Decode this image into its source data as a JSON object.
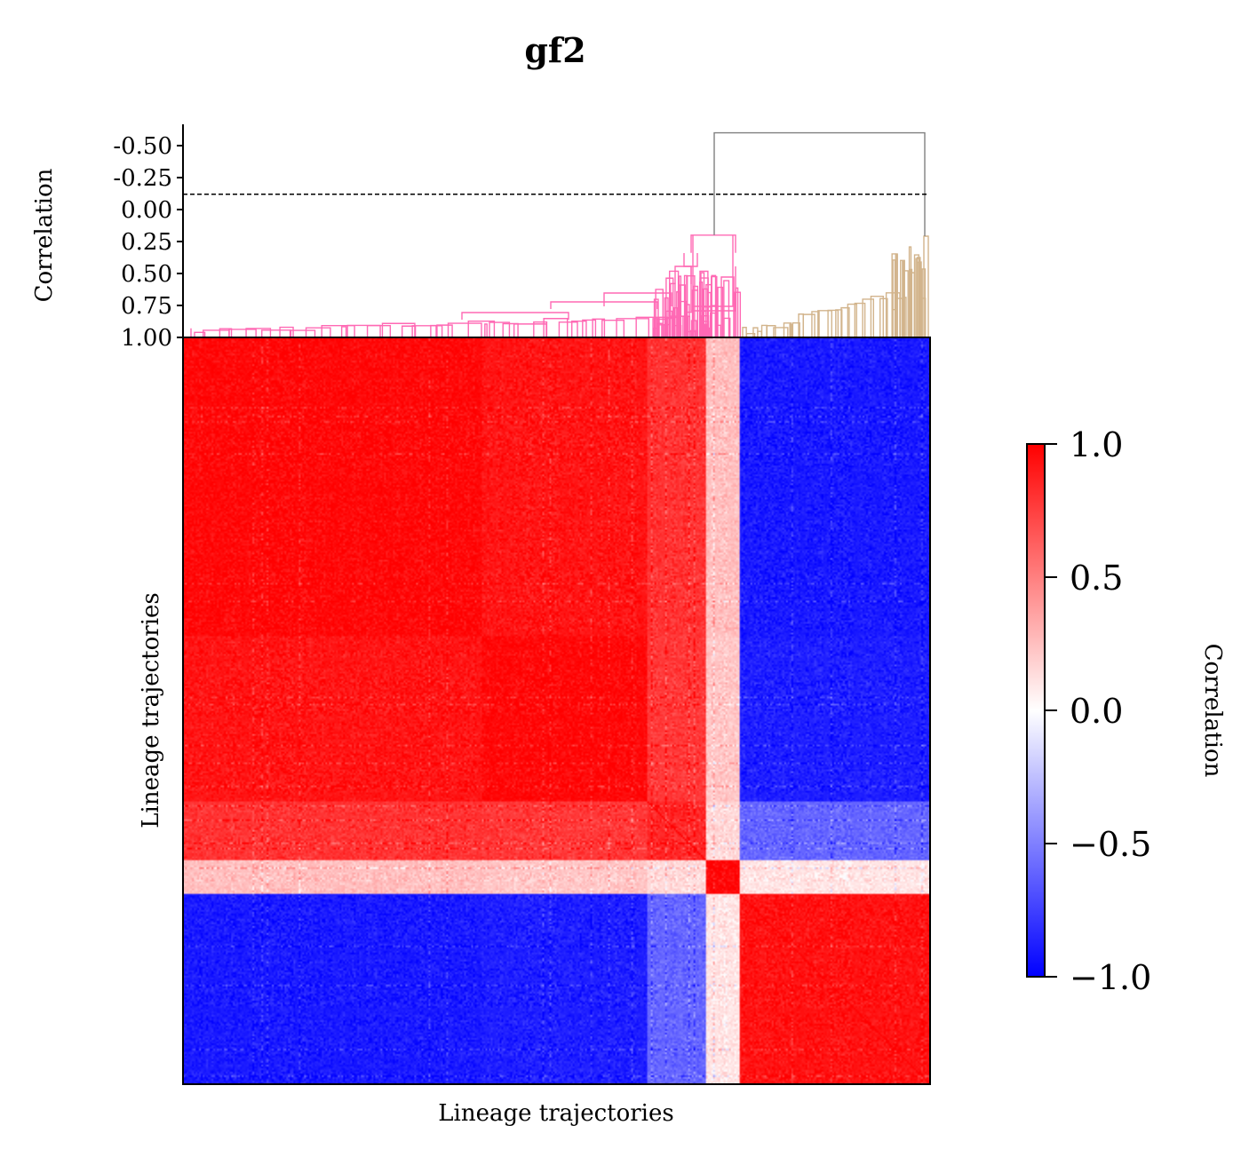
{
  "chart_data": {
    "type": "heatmap",
    "title": "gf2",
    "xlabel": "Lineage trajectories",
    "ylabel": "Lineage trajectories",
    "dendrogram": {
      "ylabel": "Correlation",
      "yticks": [
        "-0.50",
        "-0.25",
        "0.00",
        "0.25",
        "0.50",
        "0.75",
        "1.00"
      ],
      "ytick_values": [
        -0.5,
        -0.25,
        0.0,
        0.25,
        0.5,
        0.75,
        1.0
      ],
      "ylim": [
        1.0,
        -0.68
      ],
      "threshold": -0.12,
      "root_height": -0.6,
      "cluster_colors": [
        "#ff69b4",
        "#d2b48c"
      ],
      "root_color": "#808080"
    },
    "clusters": [
      {
        "span": [
          0.0,
          0.4
        ],
        "internal": 0.97
      },
      {
        "span": [
          0.4,
          0.62
        ],
        "internal": 0.97
      },
      {
        "span": [
          0.62,
          0.7
        ],
        "internal": 0.85
      },
      {
        "span": [
          0.7,
          0.745
        ],
        "internal": 0.55
      },
      {
        "span": [
          0.745,
          0.69
        ],
        "internal": 0.3
      }
    ],
    "colorbar": {
      "label": "Correlation",
      "ticks": [
        "1.0",
        "0.5",
        "0.0",
        "−0.5",
        "−1.0"
      ],
      "tick_values": [
        1.0,
        0.5,
        0.0,
        -0.5,
        -1.0
      ],
      "vmin": -1.0,
      "vmax": 1.0,
      "colormap": "bwr",
      "color_low": "#0000ff",
      "color_mid": "#ffffff",
      "color_high": "#ff0000"
    }
  }
}
